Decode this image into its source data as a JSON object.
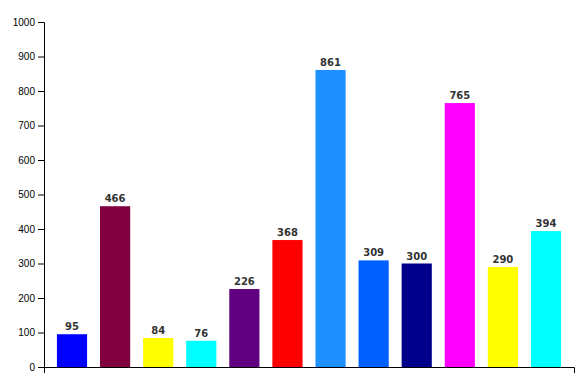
{
  "chart_data": {
    "type": "bar",
    "categories": [
      null,
      null,
      null,
      null,
      null,
      null,
      null,
      null,
      null,
      null,
      null,
      null
    ],
    "values": [
      95,
      466,
      84,
      76,
      226,
      368,
      861,
      309,
      300,
      765,
      290,
      394
    ],
    "colors": [
      "#0000FF",
      "#800040",
      "#FFFF00",
      "#00FFFF",
      "#600080",
      "#FF0000",
      "#1E90FF",
      "#0060FF",
      "#00008B",
      "#FF00FF",
      "#FFFF00",
      "#00FFFF"
    ],
    "ylim": [
      0,
      1000
    ],
    "yticks": [
      0,
      100,
      200,
      300,
      400,
      500,
      600,
      700,
      800,
      900,
      1000
    ],
    "grid": false,
    "data_labels": true,
    "tick_labels": "y"
  }
}
